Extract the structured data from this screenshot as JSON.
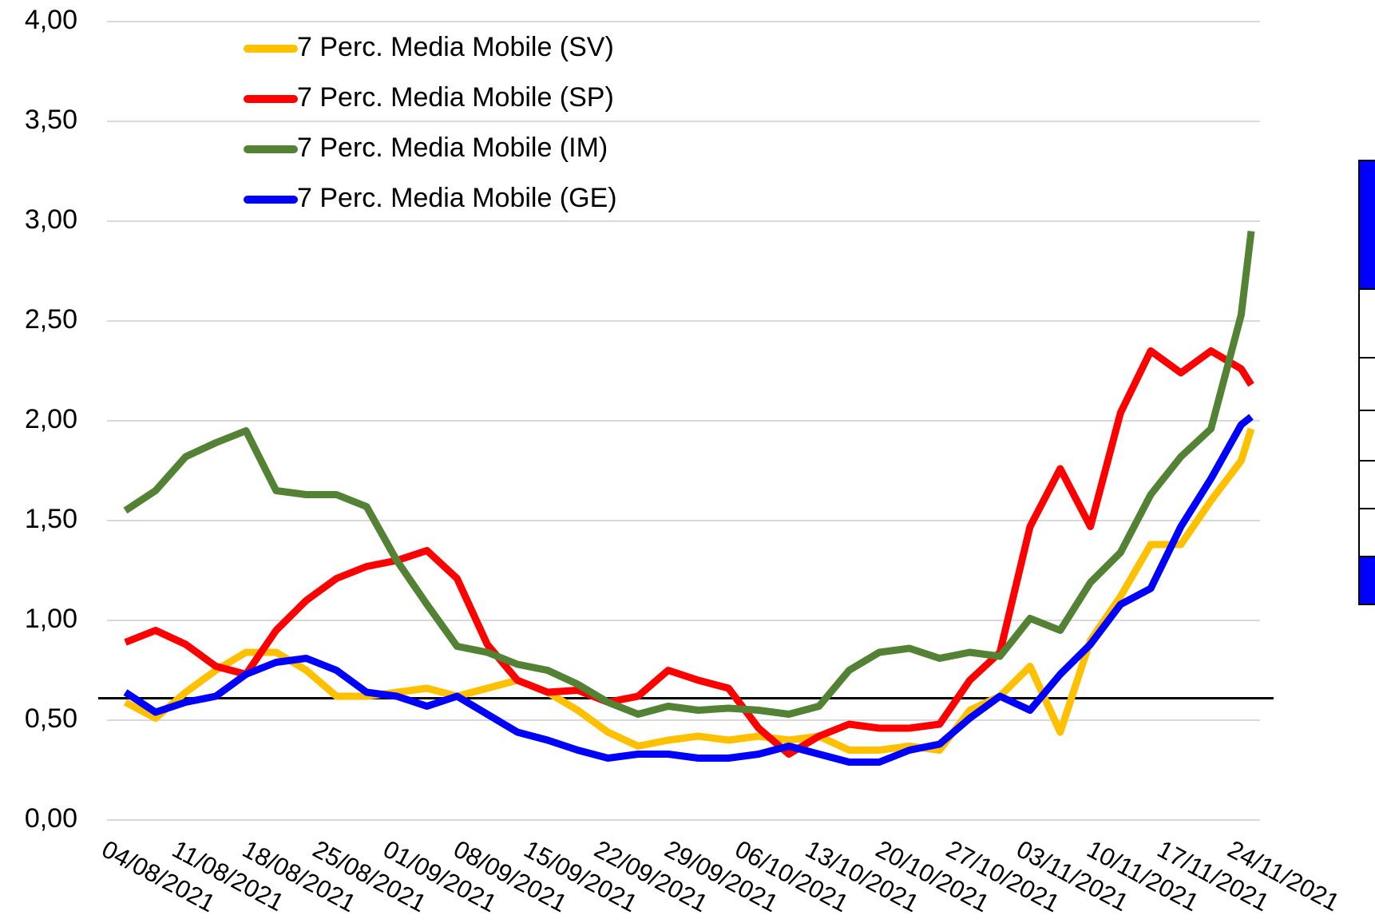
{
  "chart_data": {
    "type": "line",
    "x": [
      "04/08/2021",
      "07/08/2021",
      "10/08/2021",
      "13/08/2021",
      "16/08/2021",
      "19/08/2021",
      "22/08/2021",
      "25/08/2021",
      "28/08/2021",
      "31/08/2021",
      "03/09/2021",
      "06/09/2021",
      "09/09/2021",
      "12/09/2021",
      "15/09/2021",
      "18/09/2021",
      "21/09/2021",
      "24/09/2021",
      "27/09/2021",
      "30/09/2021",
      "03/10/2021",
      "06/10/2021",
      "09/10/2021",
      "12/10/2021",
      "15/10/2021",
      "18/10/2021",
      "21/10/2021",
      "24/10/2021",
      "27/10/2021",
      "30/10/2021",
      "02/11/2021",
      "05/11/2021",
      "08/11/2021",
      "11/11/2021",
      "14/11/2021",
      "17/11/2021",
      "20/11/2021",
      "23/11/2021",
      "24/11/2021"
    ],
    "series": [
      {
        "name": "7 Perc. Media Mobile (SV)",
        "color": "#ffc000",
        "values": [
          0.59,
          0.51,
          0.64,
          0.75,
          0.84,
          0.84,
          0.75,
          0.62,
          0.62,
          0.64,
          0.66,
          0.62,
          0.66,
          0.7,
          0.64,
          0.55,
          0.44,
          0.37,
          0.4,
          0.42,
          0.4,
          0.42,
          0.4,
          0.42,
          0.35,
          0.35,
          0.37,
          0.35,
          0.55,
          0.62,
          0.77,
          0.44,
          0.9,
          1.12,
          1.38,
          1.38,
          1.6,
          1.8,
          1.96
        ]
      },
      {
        "name": "7 Perc. Media Mobile (SP)",
        "color": "#ff0000",
        "values": [
          0.89,
          0.95,
          0.88,
          0.77,
          0.73,
          0.95,
          1.1,
          1.21,
          1.27,
          1.3,
          1.35,
          1.21,
          0.88,
          0.7,
          0.64,
          0.65,
          0.59,
          0.62,
          0.75,
          0.7,
          0.66,
          0.46,
          0.33,
          0.42,
          0.48,
          0.46,
          0.46,
          0.48,
          0.7,
          0.84,
          1.47,
          1.76,
          1.47,
          2.04,
          2.35,
          2.24,
          2.35,
          2.26,
          2.18
        ]
      },
      {
        "name": "7 Perc. Media Mobile (IM)",
        "color": "#548235",
        "values": [
          1.55,
          1.65,
          1.82,
          1.89,
          1.95,
          1.65,
          1.63,
          1.63,
          1.57,
          1.3,
          1.08,
          0.87,
          0.84,
          0.78,
          0.75,
          0.68,
          0.59,
          0.53,
          0.57,
          0.55,
          0.56,
          0.55,
          0.53,
          0.57,
          0.75,
          0.84,
          0.86,
          0.81,
          0.84,
          0.82,
          1.01,
          0.95,
          1.19,
          1.34,
          1.63,
          1.82,
          1.96,
          2.53,
          2.95
        ]
      },
      {
        "name": "7 Perc. Media Mobile (GE)",
        "color": "#0000ff",
        "values": [
          0.64,
          0.54,
          0.59,
          0.62,
          0.73,
          0.79,
          0.81,
          0.75,
          0.64,
          0.62,
          0.57,
          0.62,
          0.53,
          0.44,
          0.4,
          0.35,
          0.31,
          0.33,
          0.33,
          0.31,
          0.31,
          0.33,
          0.37,
          0.33,
          0.29,
          0.29,
          0.35,
          0.38,
          0.51,
          0.62,
          0.55,
          0.73,
          0.88,
          1.08,
          1.16,
          1.47,
          1.71,
          1.98,
          2.02
        ]
      }
    ],
    "xlim": [
      "04/08/2021",
      "24/11/2021"
    ],
    "xticks": [
      "04/08/2021",
      "11/08/2021",
      "18/08/2021",
      "25/08/2021",
      "01/09/2021",
      "08/09/2021",
      "15/09/2021",
      "22/09/2021",
      "29/09/2021",
      "06/10/2021",
      "13/10/2021",
      "20/10/2021",
      "27/10/2021",
      "03/11/2021",
      "10/11/2021",
      "17/11/2021",
      "24/11/2021"
    ],
    "ylim": [
      0,
      4
    ],
    "yticks": [
      {
        "value": 0,
        "label": "0,00"
      },
      {
        "value": 0.5,
        "label": "0,50"
      },
      {
        "value": 1,
        "label": "1,00"
      },
      {
        "value": 1.5,
        "label": "1,50"
      },
      {
        "value": 2,
        "label": "2,00"
      },
      {
        "value": 2.5,
        "label": "2,50"
      },
      {
        "value": 3,
        "label": "3,00"
      },
      {
        "value": 3.5,
        "label": "3,50"
      },
      {
        "value": 4,
        "label": "4,00"
      }
    ],
    "reference_line": 0.61,
    "grid": true,
    "legend": "upper-left"
  }
}
